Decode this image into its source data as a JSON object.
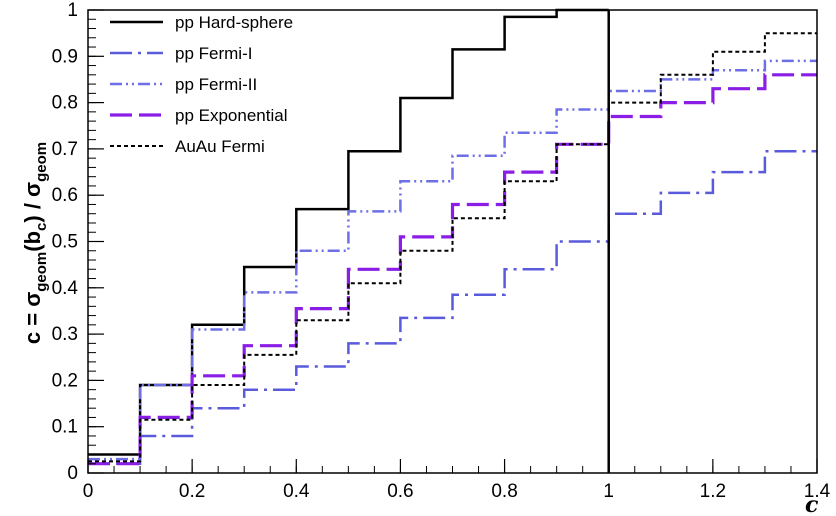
{
  "chart_data": {
    "type": "line",
    "step": true,
    "xlabel": "c",
    "ylabel": {
      "parts": [
        "c = σ",
        "geom",
        "(b",
        "c",
        ") / σ",
        "geom"
      ]
    },
    "xlim": [
      0,
      1.4
    ],
    "ylim": [
      0,
      1
    ],
    "xticks": [
      "0",
      "0.2",
      "0.4",
      "0.6",
      "0.8",
      "1",
      "1.2",
      "1.4"
    ],
    "yticks": [
      "0",
      "0.1",
      "0.2",
      "0.3",
      "0.4",
      "0.5",
      "0.6",
      "0.7",
      "0.8",
      "0.9",
      "1"
    ],
    "bin_edges": [
      0,
      0.1,
      0.2,
      0.3,
      0.4,
      0.5,
      0.6,
      0.7,
      0.8,
      0.9,
      1.0,
      1.1,
      1.2,
      1.3,
      1.4
    ],
    "legend_position": "top-left",
    "series": [
      {
        "name": "pp Hard-sphere",
        "color": "#000000",
        "style": "solid",
        "values": [
          0.04,
          0.19,
          0.32,
          0.445,
          0.57,
          0.695,
          0.81,
          0.915,
          0.985,
          1.0
        ]
      },
      {
        "name": "pp Fermi-I",
        "color": "#5a5adc",
        "style": "dashdot",
        "values": [
          0.02,
          0.08,
          0.14,
          0.18,
          0.23,
          0.28,
          0.335,
          0.385,
          0.44,
          0.5,
          0.56,
          0.605,
          0.65,
          0.695
        ]
      },
      {
        "name": "pp Fermi-II",
        "color": "#6e6ee6",
        "style": "dashdotdot",
        "values": [
          0.03,
          0.19,
          0.31,
          0.39,
          0.48,
          0.565,
          0.63,
          0.685,
          0.735,
          0.785,
          0.825,
          0.85,
          0.87,
          0.89
        ]
      },
      {
        "name": "pp Exponential",
        "color": "#8a1ee6",
        "style": "dashed",
        "values": [
          0.02,
          0.12,
          0.21,
          0.275,
          0.355,
          0.44,
          0.51,
          0.58,
          0.65,
          0.71,
          0.77,
          0.8,
          0.83,
          0.86
        ]
      },
      {
        "name": "AuAu Fermi",
        "color": "#000000",
        "style": "dotted",
        "values": [
          0.025,
          0.115,
          0.19,
          0.255,
          0.33,
          0.41,
          0.48,
          0.55,
          0.63,
          0.71,
          0.8,
          0.86,
          0.91,
          0.95
        ]
      }
    ],
    "reference_lines": [
      {
        "x": 1.0,
        "color": "#000000"
      }
    ]
  }
}
